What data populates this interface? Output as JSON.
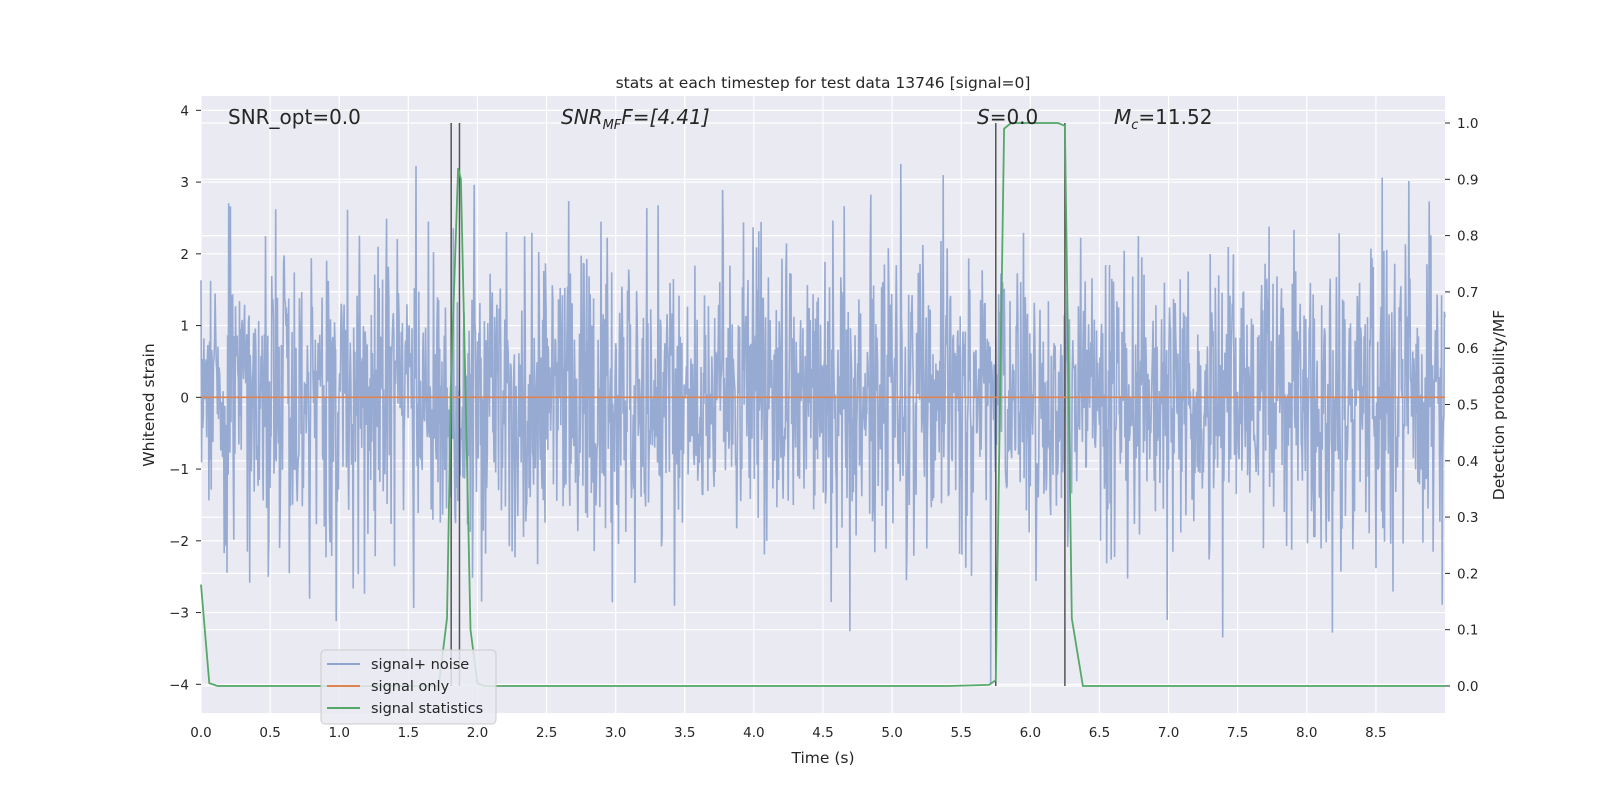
{
  "chart_data": {
    "type": "line",
    "title": "stats at each timestep for test data 13746 [signal=0]",
    "xlabel": "Time (s)",
    "ylabel": "Whitened strain",
    "y2label": "Detection probability/MF",
    "xlim": [
      0,
      9.0
    ],
    "ylim": [
      -4.4,
      4.2
    ],
    "y2lim": [
      -0.048,
      1.048
    ],
    "x_ticks": [
      "0.0",
      "0.5",
      "1.0",
      "1.5",
      "2.0",
      "2.5",
      "3.0",
      "3.5",
      "4.0",
      "4.5",
      "5.0",
      "5.5",
      "6.0",
      "6.5",
      "7.0",
      "7.5",
      "8.0",
      "8.5"
    ],
    "y_ticks": [
      4,
      3,
      2,
      1,
      0,
      -1,
      -2,
      -3,
      -4
    ],
    "y2_ticks": [
      "1.0",
      "0.9",
      "0.8",
      "0.7",
      "0.6",
      "0.5",
      "0.4",
      "0.3",
      "0.2",
      "0.1",
      "0.0"
    ],
    "grid": true,
    "annotations": {
      "snr_opt": "SNR_opt=0.0",
      "snr_mf_main": "SNR",
      "snr_mf_sub": "MF",
      "snr_mf_rest": "F=[4.41]",
      "s_main": "S",
      "s_rest": "=0.0",
      "mc_main": "M",
      "mc_sub": "c",
      "mc_rest": "=11.52"
    },
    "series": [
      {
        "name": "signal+ noise",
        "color": "#8fa4cf",
        "description_values": "dense whitened noise, amplitude roughly within -4 to 4",
        "noise_range": [
          -4.0,
          4.0
        ]
      },
      {
        "name": "signal only",
        "color": "#dd8452",
        "x": [
          0,
          9.0
        ],
        "y": [
          0,
          0
        ]
      },
      {
        "name": "signal statistics",
        "color": "#55a868",
        "axis": "right",
        "x": [
          0.0,
          0.06,
          0.12,
          1.72,
          1.78,
          1.81,
          1.86,
          1.88,
          1.92,
          1.95,
          2.0,
          2.05,
          5.4,
          5.7,
          5.75,
          5.81,
          5.86,
          5.92,
          6.0,
          6.1,
          6.2,
          6.25,
          6.3,
          6.38,
          9.0
        ],
        "y": [
          0.18,
          0.005,
          0.0,
          0.0,
          0.12,
          0.55,
          0.92,
          0.9,
          0.45,
          0.1,
          0.005,
          0.0,
          0.0,
          0.002,
          0.01,
          0.99,
          1.0,
          1.0,
          1.0,
          1.0,
          1.0,
          0.995,
          0.12,
          0.0,
          0.0
        ]
      }
    ],
    "vlines": [
      1.81,
      1.87,
      5.75,
      6.25
    ]
  }
}
